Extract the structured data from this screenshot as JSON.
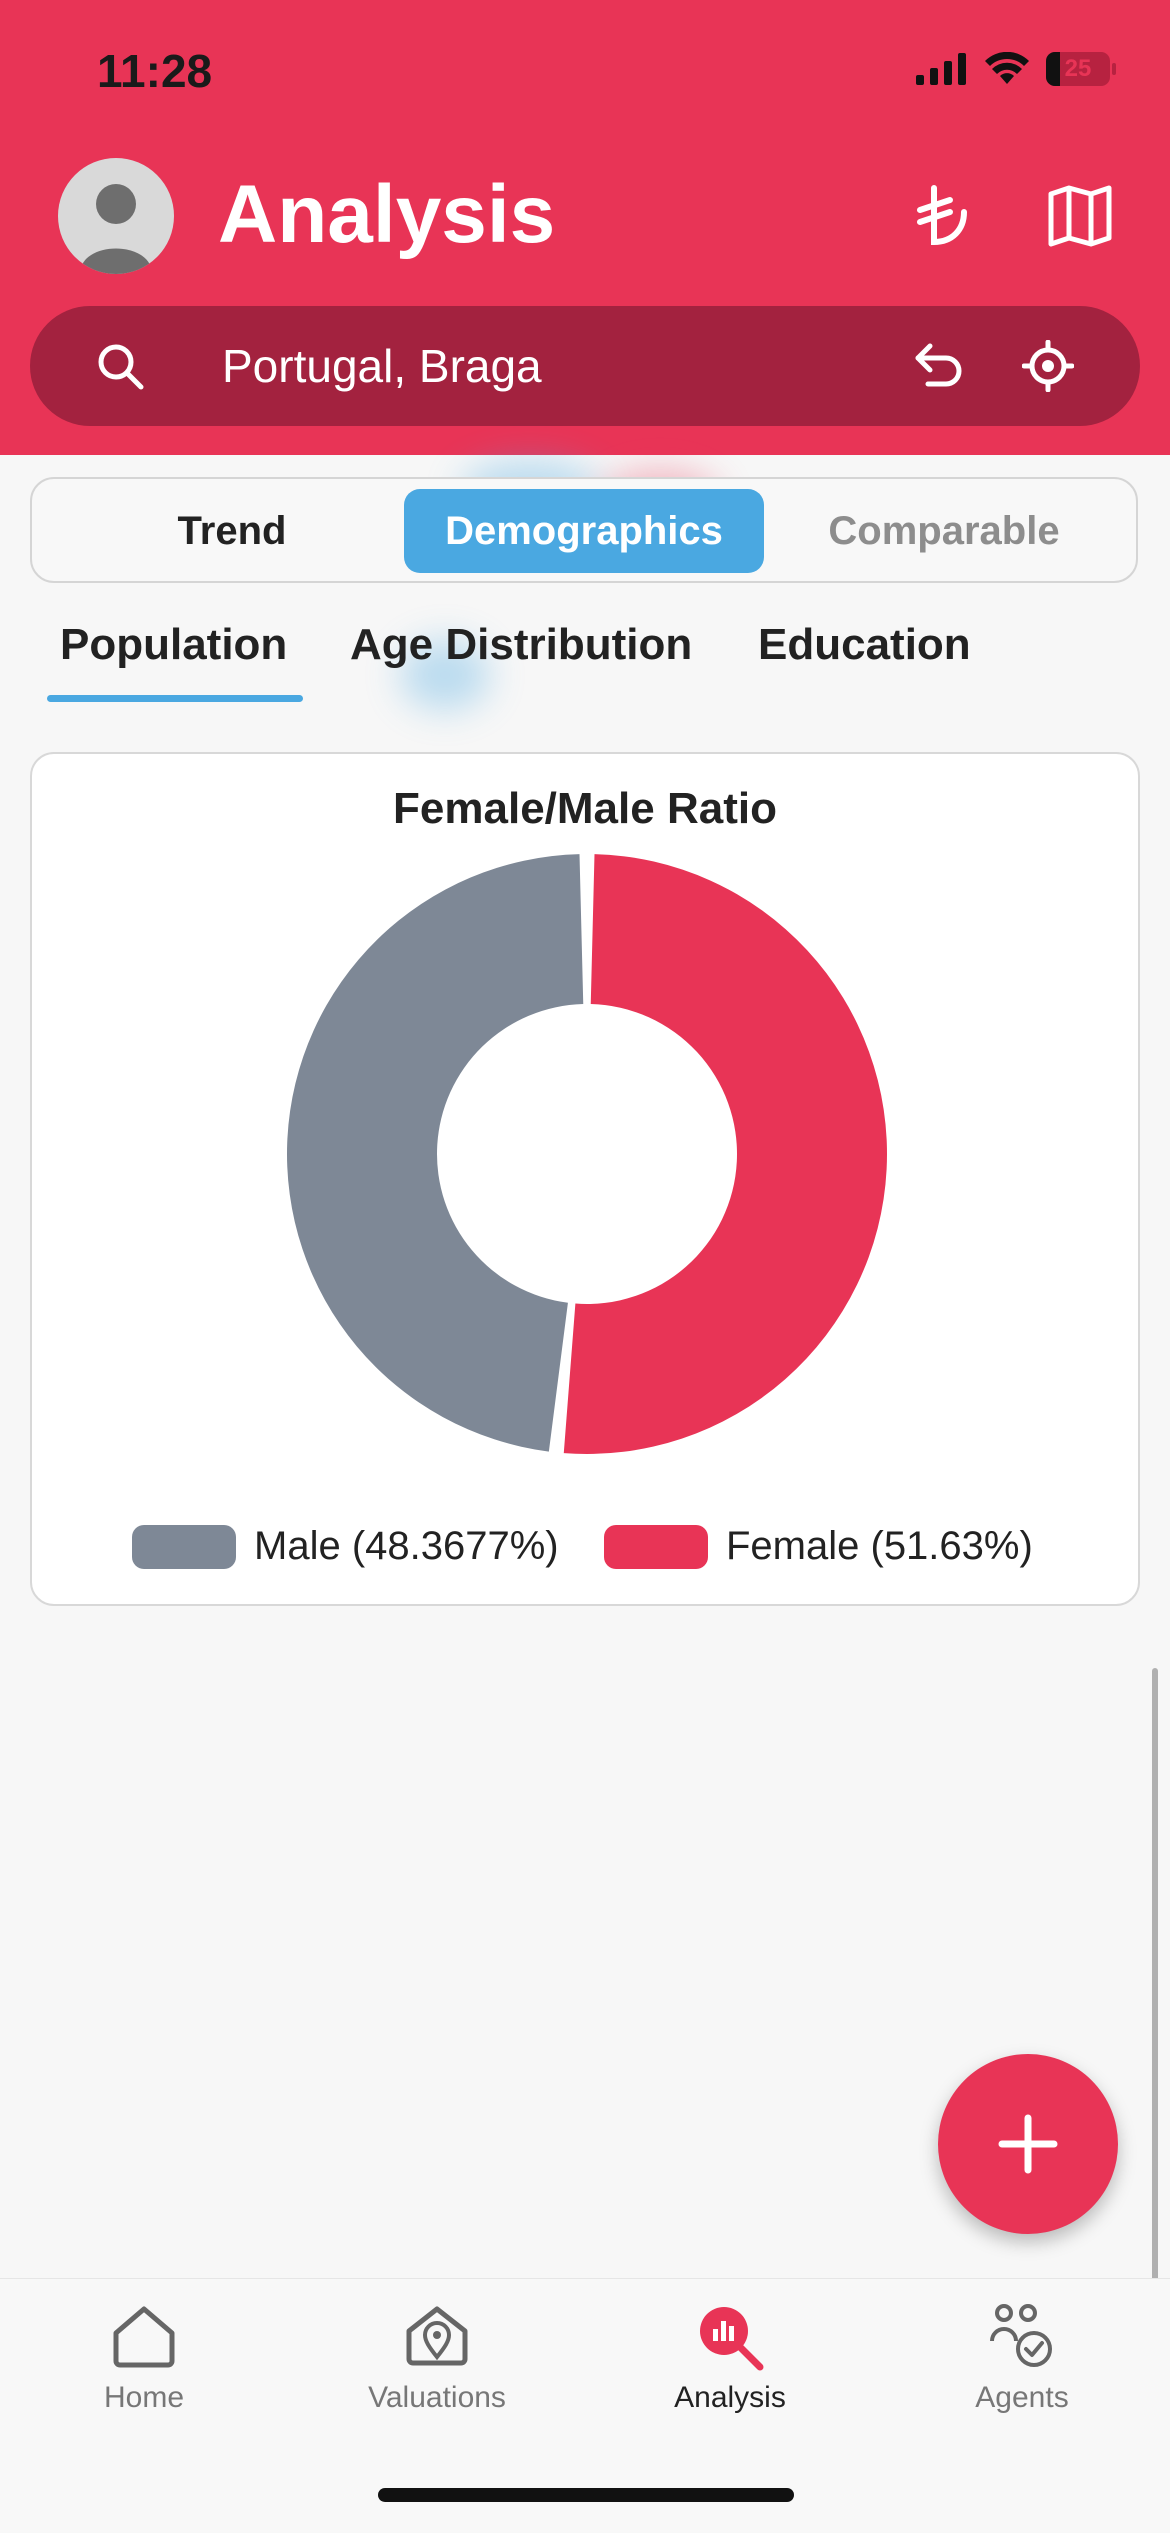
{
  "status_bar": {
    "time": "11:28",
    "battery": "25"
  },
  "header": {
    "title": "Analysis",
    "currency_icon": "lira-icon",
    "map_icon": "map-icon"
  },
  "search": {
    "value": "Portugal, Braga"
  },
  "segments": [
    {
      "label": "Trend",
      "selected": false
    },
    {
      "label": "Demographics",
      "selected": true
    },
    {
      "label": "Comparable",
      "selected": false
    }
  ],
  "subtabs": [
    {
      "label": "Population",
      "selected": true
    },
    {
      "label": "Age Distribution",
      "selected": false
    },
    {
      "label": "Education",
      "selected": false
    }
  ],
  "chart_data": {
    "type": "pie",
    "title": "Female/Male Ratio",
    "series": [
      {
        "name": "Male (48.3677%)",
        "value": 48.3677,
        "color": "#7e8896"
      },
      {
        "name": "Female (51.63%)",
        "value": 51.63,
        "color": "#e83456"
      }
    ]
  },
  "tabbar": {
    "items": [
      {
        "label": "Home",
        "icon": "home-icon",
        "active": false
      },
      {
        "label": "Valuations",
        "icon": "valuations-icon",
        "active": false
      },
      {
        "label": "Analysis",
        "icon": "analysis-icon",
        "active": true
      },
      {
        "label": "Agents",
        "icon": "agents-icon",
        "active": false
      }
    ]
  },
  "colors": {
    "brand": "#e83456",
    "accent": "#4aa8e1"
  }
}
